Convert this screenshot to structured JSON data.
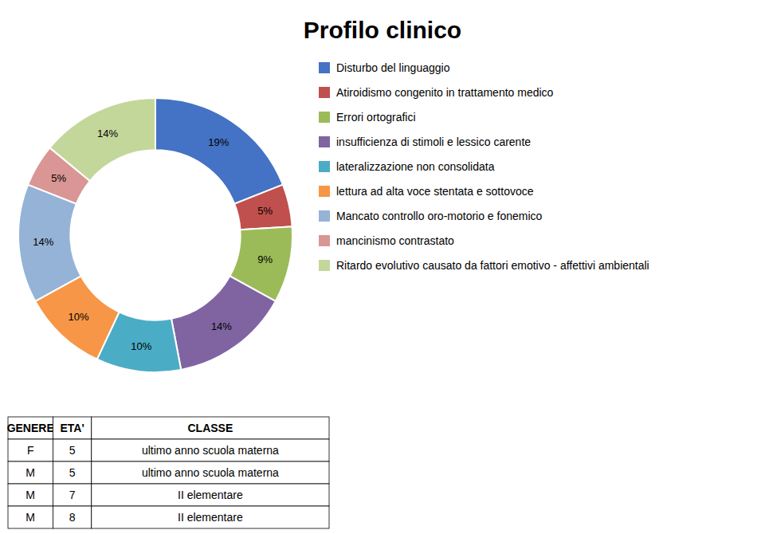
{
  "chart_data": [
    {
      "type": "donut",
      "title": "Profilo clinico",
      "categories": [
        "Disturbo del linguaggio",
        "Atiroidismo congenito in trattamento medico",
        "Errori ortografici",
        "insufficienza di stimoli e lessico carente",
        "lateralizzazione non consolidata",
        "lettura ad alta voce stentata e sottovoce",
        "Mancato controllo oro-motorio e fonemico",
        "mancinismo contrastato",
        "Ritardo evolutivo causato da fattori emotivo - affettivi ambientali"
      ],
      "values": [
        19,
        5,
        9,
        14,
        10,
        10,
        14,
        5,
        14
      ],
      "value_labels": [
        "19%",
        "5%",
        "9%",
        "14%",
        "10%",
        "10%",
        "14%",
        "5%",
        "14%"
      ],
      "colors": [
        "#4472C4",
        "#C0504D",
        "#9BBB59",
        "#8064A2",
        "#4BACC6",
        "#F79646",
        "#95B3D7",
        "#D99694",
        "#C4D79B"
      ],
      "data_labels": true,
      "legend": "right"
    },
    {
      "type": "table",
      "columns": [
        "GENERE",
        "ETA'",
        "CLASSE"
      ],
      "rows": [
        [
          "F",
          5,
          "ultimo anno scuola materna"
        ],
        [
          "M",
          5,
          "ultimo anno scuola materna"
        ],
        [
          "M",
          7,
          "II elementare"
        ],
        [
          "M",
          8,
          "II elementare"
        ]
      ]
    }
  ]
}
